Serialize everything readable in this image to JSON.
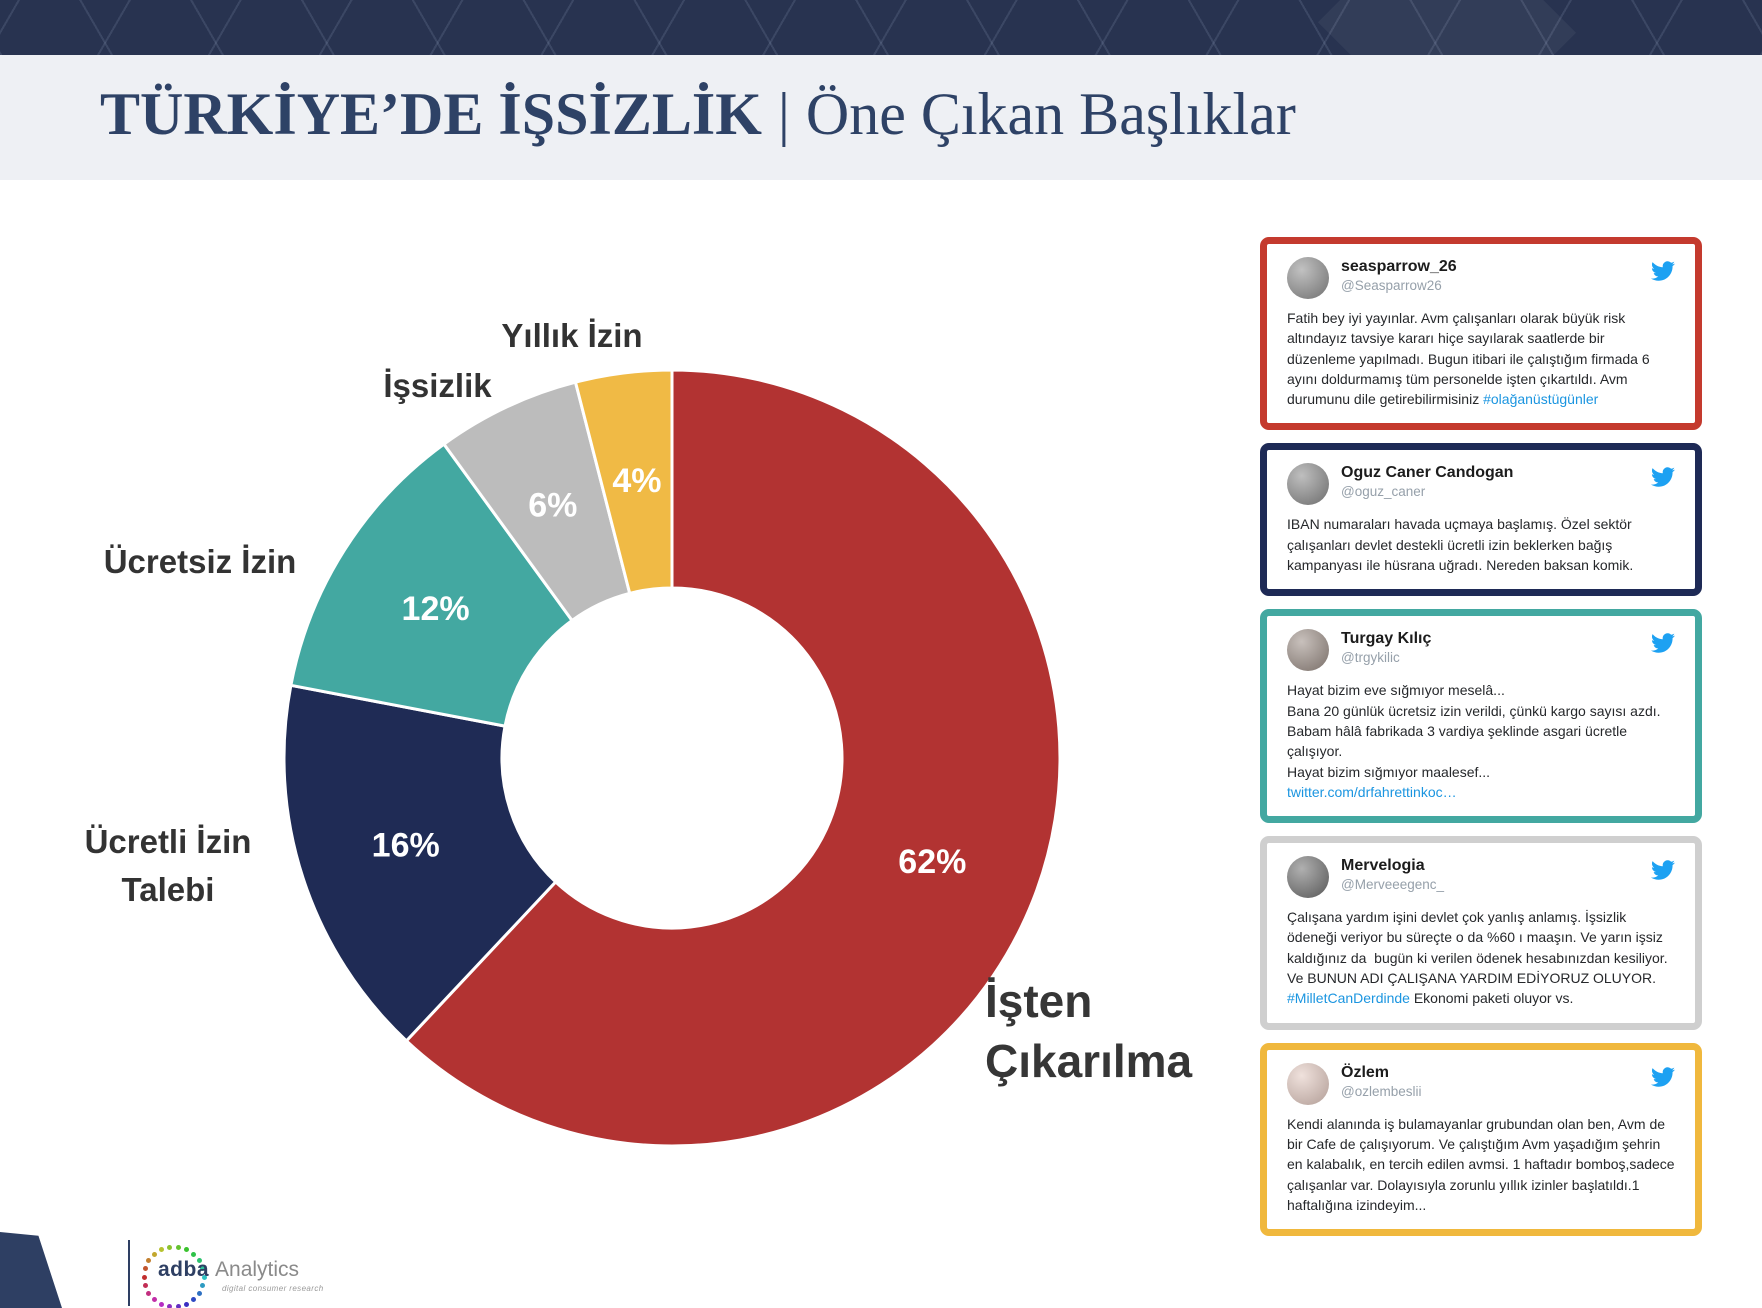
{
  "header": {
    "title_main": "TÜRKİYE’DE İŞSİZLİK",
    "title_separator": "|",
    "title_sub": "Öne Çıkan Başlıklar"
  },
  "palette": {
    "topbar": "#283350",
    "title_text": "#2e4266",
    "title_band": "#eef0f4",
    "link_blue": "#1b95e0",
    "twitter_blue": "#1da1f2"
  },
  "chart_data": {
    "type": "pie",
    "donut": true,
    "start": "top",
    "direction": "clockwise",
    "unit": "%",
    "title": "",
    "categories": [
      "İşten Çıkarılma",
      "Ücretli İzin Talebi",
      "Ücretsiz İzin",
      "İşsizlik",
      "Yıllık İzin"
    ],
    "values": [
      62,
      16,
      12,
      6,
      4
    ],
    "data_labels": [
      "62%",
      "16%",
      "12%",
      "6%",
      "4%"
    ],
    "colors": [
      "#b23332",
      "#1f2b55",
      "#43a8a1",
      "#bcbcbc",
      "#f0ba45"
    ]
  },
  "tweets": [
    {
      "name": "seasparrow_26",
      "handle": "@Seasparrow26",
      "accent": "#c43a2e",
      "avatar": "#8f8f8f",
      "body": [
        {
          "t": "Fatih bey iyi yayınlar. Avm çalışanları olarak büyük risk altındayız tavsiye kararı hiçe sayılarak saatlerde bir düzenleme yapılmadı. Bugun itibari ile çalıştığım firmada 6 ayını doldurmamış tüm personelde işten çıkartıldı. Avm durumunu dile getirebilirmisiniz "
        },
        {
          "t": "#olağanüstügünler",
          "link": true
        }
      ]
    },
    {
      "name": "Oguz Caner Candogan",
      "handle": "@oguz_caner",
      "accent": "#1e2a56",
      "avatar": "#8a8a8a",
      "body": [
        {
          "t": "IBAN numaraları havada uçmaya başlamış. Özel sektör çalışanları devlet destekli ücretli izin beklerken bağış kampanyası ile hüsrana uğradı. Nereden baksan komik."
        }
      ]
    },
    {
      "name": "Turgay Kılıç",
      "handle": "@trgykilic",
      "accent": "#43a8a1",
      "avatar": "#9b8d85",
      "body": [
        {
          "t": "Hayat bizim eve sığmıyor meselâ...\nBana 20 günlük ücretsiz izin verildi, çünkü kargo sayısı azdı.\nBabam hâlâ fabrikada 3 vardiya şeklinde asgari ücretle çalışıyor.\nHayat bizim sığmıyor maalesef...\n"
        },
        {
          "t": "twitter.com/drfahrettinkoc…",
          "link": true
        }
      ]
    },
    {
      "name": "Mervelogia",
      "handle": "@Merveeegenc_",
      "accent": "#cfcfcf",
      "avatar": "#6f6f6f",
      "body": [
        {
          "t": "Çalışana yardım işini devlet çok yanlış anlamış. İşsizlik ödeneği veriyor bu süreçte o da %60 ı maaşın. Ve yarın işsiz kaldığınız da  bugün ki verilen ödenek hesabınızdan kesiliyor.  Ve BUNUN ADI ÇALIŞANA YARDIM EDİYORUZ OLUYOR. "
        },
        {
          "t": "#MilletCanDerdinde",
          "link": true
        },
        {
          "t": " Ekonomi paketi oluyor vs."
        }
      ]
    },
    {
      "name": "Özlem",
      "handle": "@ozlembeslii",
      "accent": "#f0b83d",
      "avatar": "#e3c9c0",
      "body": [
        {
          "t": "Kendi alanında iş bulamayanlar grubundan olan ben, Avm de bir Cafe de çalışıyorum. Ve çalıştığım Avm yaşadığım şehrin en kalabalık, en tercih edilen avmsi. 1 haftadır bomboş,sadece çalışanlar var. Dolayısıyla zorunlu yıllık izinler başlatıldı.1 haftalığına izindeyim..."
        }
      ]
    }
  ],
  "footer": {
    "logo_main": "adba",
    "logo_secondary": "Analytics",
    "logo_tagline": "digital consumer research"
  }
}
